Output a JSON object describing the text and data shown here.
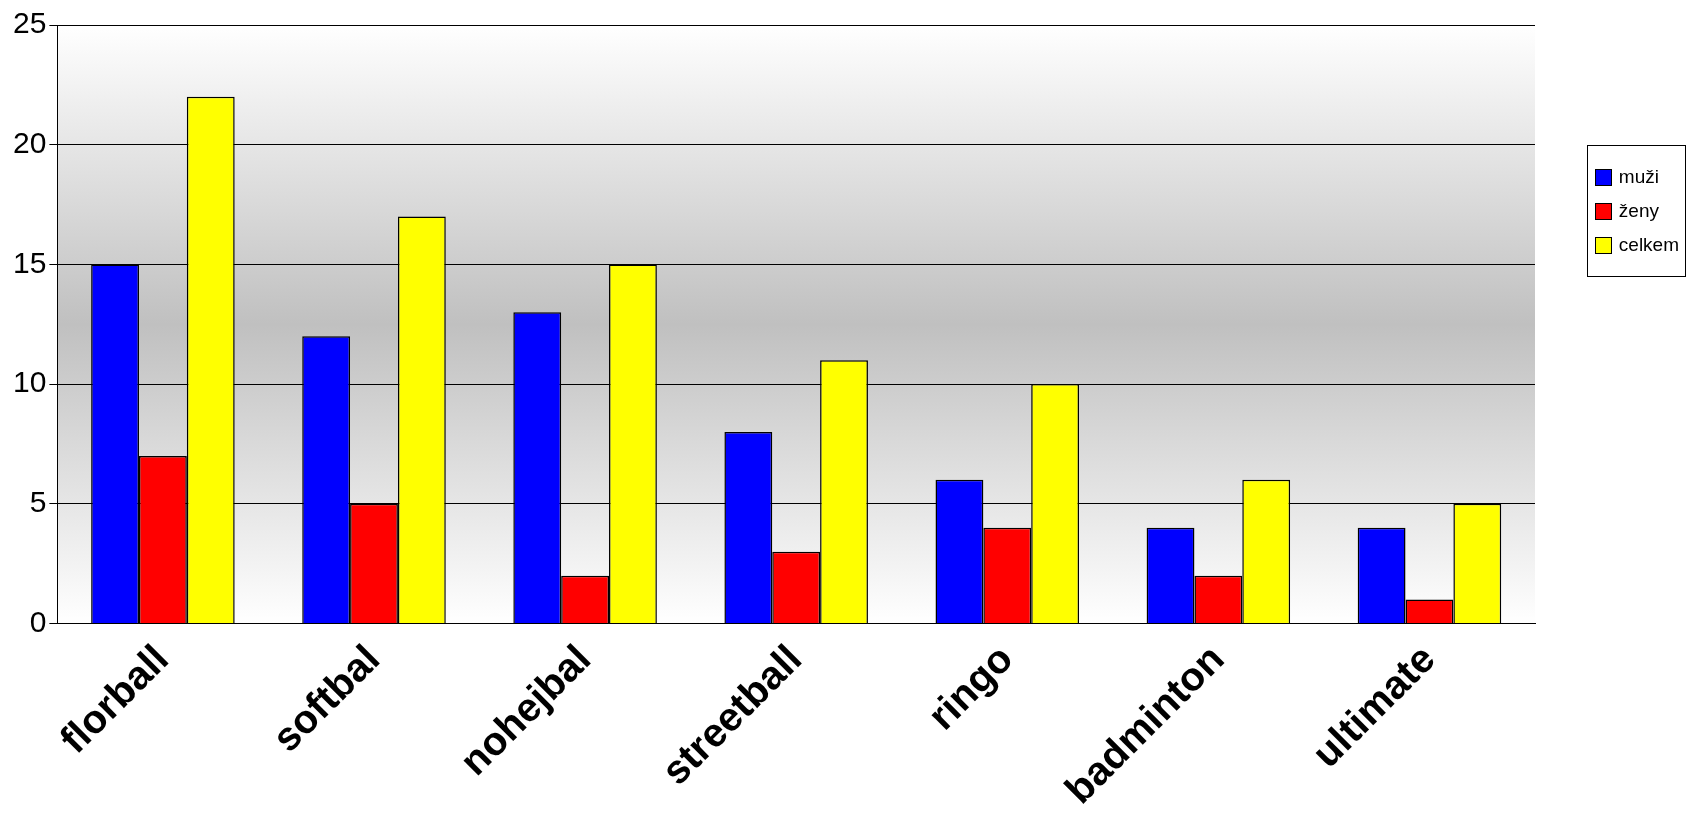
{
  "chart_data": {
    "type": "bar",
    "categories": [
      "florball",
      "softbal",
      "nohejbal",
      "streetball",
      "ringo",
      "badminton",
      "ultimate"
    ],
    "series": [
      {
        "name": "muži",
        "color": "#0000ff",
        "values": [
          15,
          12,
          13,
          8,
          6,
          4,
          4
        ]
      },
      {
        "name": "ženy",
        "color": "#ff0000",
        "values": [
          7,
          5,
          2,
          3,
          4,
          2,
          1
        ]
      },
      {
        "name": "celkem",
        "color": "#ffff00",
        "values": [
          22,
          17,
          15,
          11,
          10,
          6,
          5
        ]
      }
    ],
    "ylim": [
      0,
      25
    ],
    "yticks": [
      0,
      5,
      10,
      15,
      20,
      25
    ],
    "grid": "y",
    "legend": "right"
  }
}
